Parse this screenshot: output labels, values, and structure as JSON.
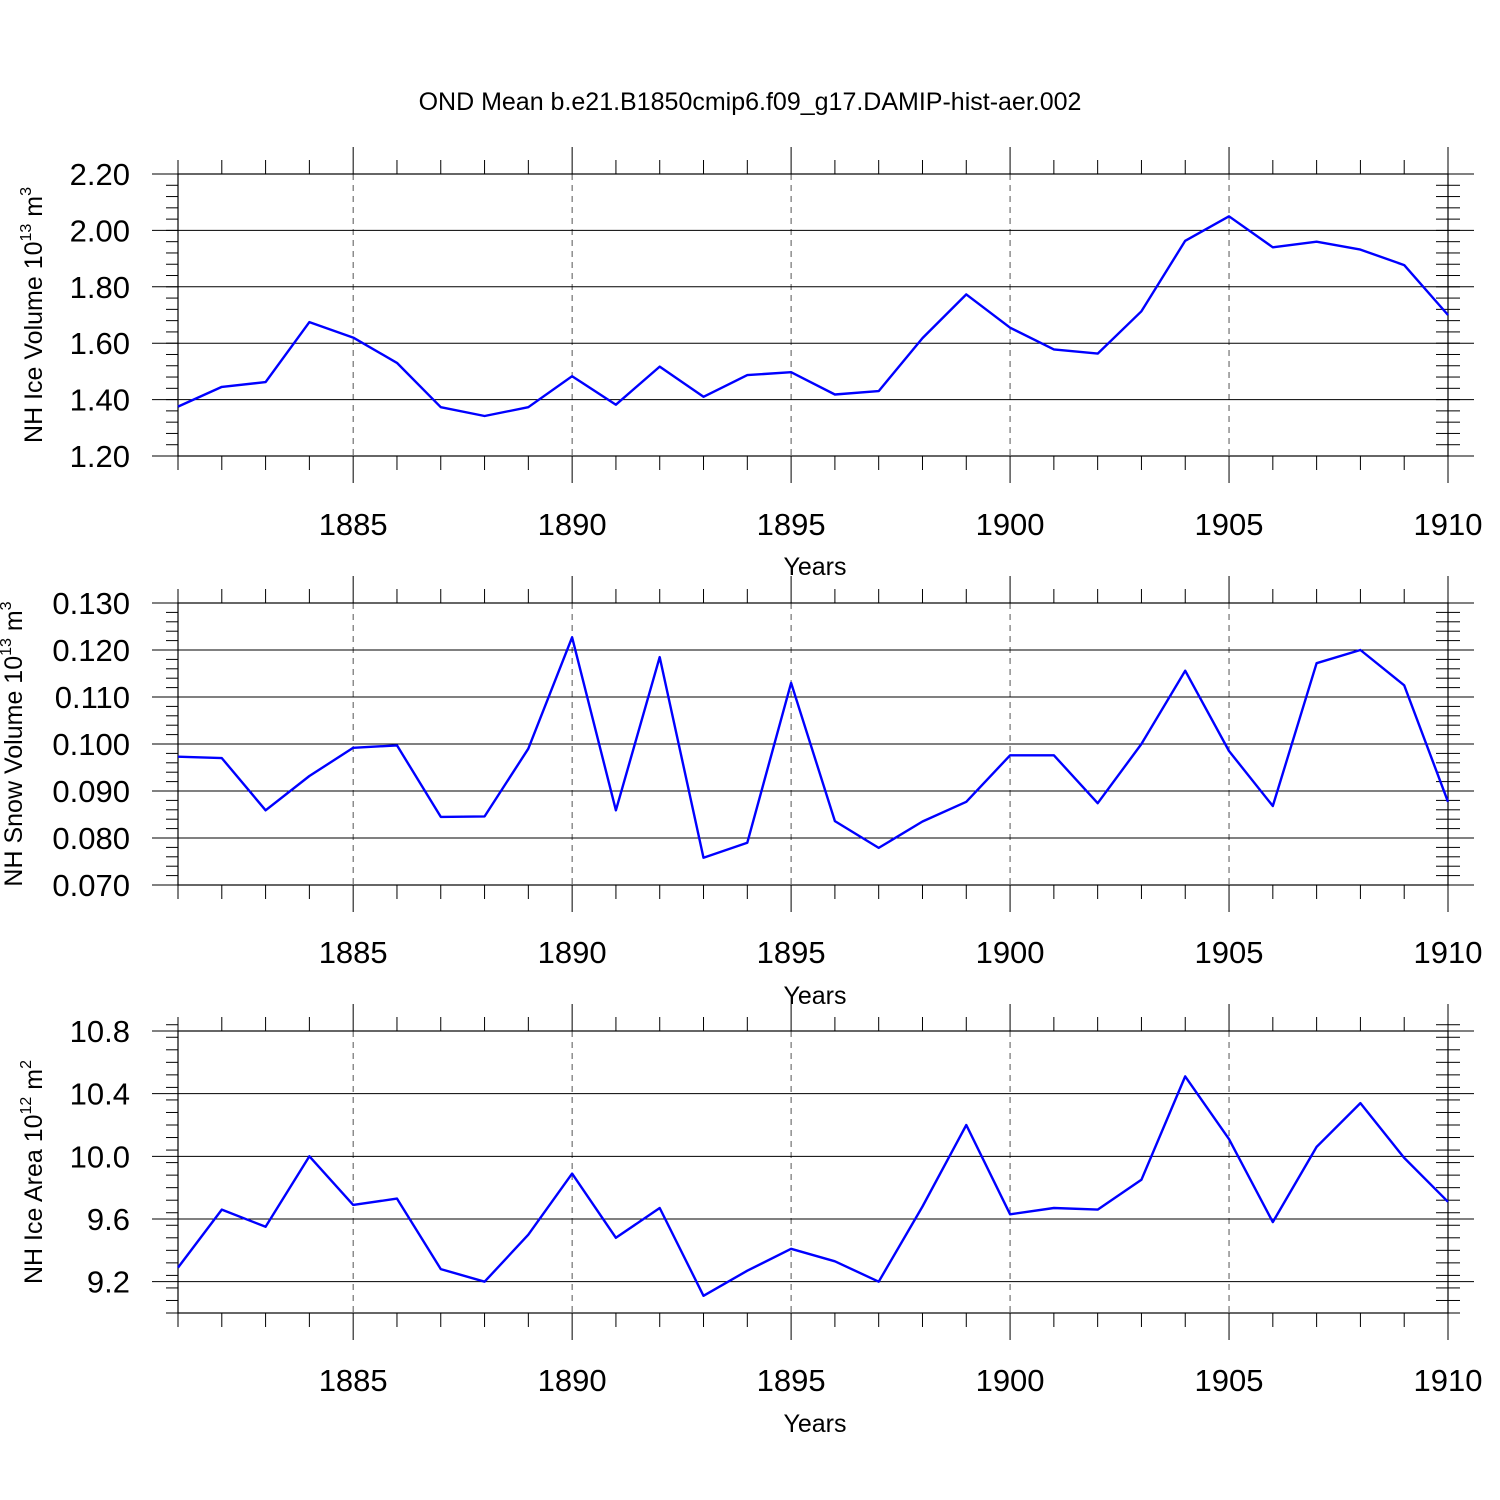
{
  "chart_data": [
    {
      "type": "line",
      "title": "OND Mean b.e21.B1850cmip6.f09_g17.DAMIP-hist-aer.002",
      "ylabel": "NH Ice Volume 10",
      "ylabel_exp": "13",
      "ylabel_unit": " m",
      "ylabel_unit_exp": "3",
      "xlabel": "Years",
      "xlim": [
        1881,
        1910
      ],
      "ylim": [
        1.2,
        2.2
      ],
      "yticks": [
        1.2,
        1.4,
        1.6,
        1.8,
        2.0,
        2.2
      ],
      "ytick_labels": [
        "1.20",
        "1.40",
        "1.60",
        "1.80",
        "2.00",
        "2.20"
      ],
      "xticks": [
        1885,
        1890,
        1895,
        1900,
        1905,
        1910
      ],
      "xtick_labels": [
        "1885",
        "1890",
        "1895",
        "1900",
        "1905",
        "1910"
      ],
      "color": "#0000ff",
      "series": [
        {
          "name": "NH Ice Volume",
          "x": [
            1881,
            1882,
            1883,
            1884,
            1885,
            1886,
            1887,
            1888,
            1889,
            1890,
            1891,
            1892,
            1893,
            1894,
            1895,
            1896,
            1897,
            1898,
            1899,
            1900,
            1901,
            1902,
            1903,
            1904,
            1905,
            1906,
            1907,
            1908,
            1909,
            1910
          ],
          "values": [
            1.375,
            1.445,
            1.462,
            1.675,
            1.62,
            1.53,
            1.373,
            1.342,
            1.373,
            1.483,
            1.382,
            1.517,
            1.41,
            1.487,
            1.497,
            1.418,
            1.43,
            1.618,
            1.773,
            1.655,
            1.578,
            1.563,
            1.713,
            1.963,
            2.05,
            1.94,
            1.96,
            1.932,
            1.877,
            1.7
          ]
        }
      ]
    },
    {
      "type": "line",
      "ylabel": "NH Snow Volume 10",
      "ylabel_exp": "13",
      "ylabel_unit": " m",
      "ylabel_unit_exp": "3",
      "xlabel": "Years",
      "xlim": [
        1881,
        1910
      ],
      "ylim": [
        0.07,
        0.13
      ],
      "yticks": [
        0.07,
        0.08,
        0.09,
        0.1,
        0.11,
        0.12,
        0.13
      ],
      "ytick_labels": [
        "0.070",
        "0.080",
        "0.090",
        "0.100",
        "0.110",
        "0.120",
        "0.130"
      ],
      "xticks": [
        1885,
        1890,
        1895,
        1900,
        1905,
        1910
      ],
      "xtick_labels": [
        "1885",
        "1890",
        "1895",
        "1900",
        "1905",
        "1910"
      ],
      "color": "#0000ff",
      "series": [
        {
          "name": "NH Snow Volume",
          "x": [
            1881,
            1882,
            1883,
            1884,
            1885,
            1886,
            1887,
            1888,
            1889,
            1890,
            1891,
            1892,
            1893,
            1894,
            1895,
            1896,
            1897,
            1898,
            1899,
            1900,
            1901,
            1902,
            1903,
            1904,
            1905,
            1906,
            1907,
            1908,
            1909,
            1910
          ],
          "values": [
            0.0973,
            0.097,
            0.0859,
            0.0932,
            0.0992,
            0.0997,
            0.0845,
            0.0846,
            0.099,
            0.1227,
            0.0859,
            0.1185,
            0.0758,
            0.079,
            0.113,
            0.0836,
            0.0779,
            0.0835,
            0.0877,
            0.0976,
            0.0976,
            0.0874,
            0.1,
            0.1156,
            0.0985,
            0.0868,
            0.1172,
            0.12,
            0.1125,
            0.0877
          ]
        }
      ]
    },
    {
      "type": "line",
      "ylabel": "NH Ice Area 10",
      "ylabel_exp": "12",
      "ylabel_unit": " m",
      "ylabel_unit_exp": "2",
      "xlabel": "Years",
      "xlim": [
        1881,
        1910
      ],
      "ylim": [
        9.0,
        10.8
      ],
      "yticks": [
        9.2,
        9.6,
        10.0,
        10.4,
        10.8
      ],
      "ytick_labels": [
        "9.2",
        "9.6",
        "10.0",
        "10.4",
        "10.8"
      ],
      "xticks": [
        1885,
        1890,
        1895,
        1900,
        1905,
        1910
      ],
      "xtick_labels": [
        "1885",
        "1890",
        "1895",
        "1900",
        "1905",
        "1910"
      ],
      "color": "#0000ff",
      "series": [
        {
          "name": "NH Ice Area",
          "x": [
            1881,
            1882,
            1883,
            1884,
            1885,
            1886,
            1887,
            1888,
            1889,
            1890,
            1891,
            1892,
            1893,
            1894,
            1895,
            1896,
            1897,
            1898,
            1899,
            1900,
            1901,
            1902,
            1903,
            1904,
            1905,
            1906,
            1907,
            1908,
            1909,
            1910
          ],
          "values": [
            9.29,
            9.66,
            9.55,
            10.0,
            9.69,
            9.73,
            9.28,
            9.2,
            9.5,
            9.89,
            9.48,
            9.67,
            9.11,
            9.27,
            9.41,
            9.33,
            9.2,
            9.68,
            10.2,
            9.63,
            9.67,
            9.66,
            9.85,
            10.51,
            10.11,
            9.58,
            10.06,
            10.34,
            9.99,
            9.71
          ]
        }
      ]
    }
  ]
}
